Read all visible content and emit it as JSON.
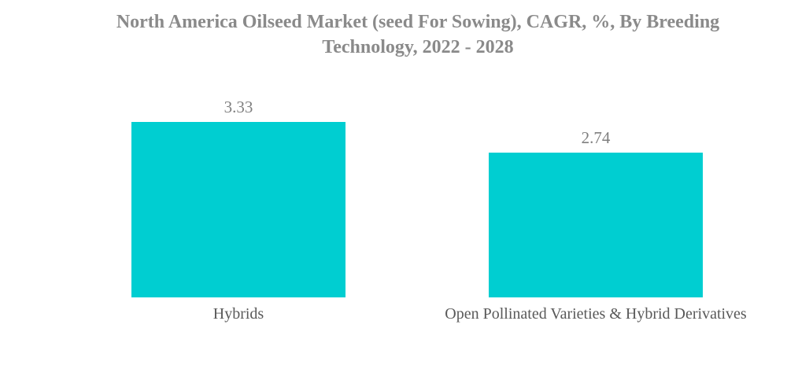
{
  "title": {
    "text": "North America Oilseed Market (seed For Sowing), CAGR, %, By Breeding Technology, 2022 - 2028",
    "color": "#8a8a8a"
  },
  "chart_data": {
    "type": "bar",
    "title": "North America Oilseed Market (seed For Sowing), CAGR, %, By Breeding Technology, 2022 - 2028",
    "categories": [
      "Hybrids",
      "Open Pollinated Varieties & Hybrid Derivatives"
    ],
    "values": [
      3.33,
      2.74
    ],
    "value_labels": [
      "3.33",
      "2.74"
    ],
    "xlabel": "",
    "ylabel": "",
    "ylim": [
      0,
      4.15
    ],
    "grid": false,
    "legend_position": "none",
    "orientation": "vertical",
    "bar_color": "#00ced1",
    "value_label_color": "#7f7f7f",
    "category_label_color": "#595959",
    "background_color": "#ffffff"
  }
}
